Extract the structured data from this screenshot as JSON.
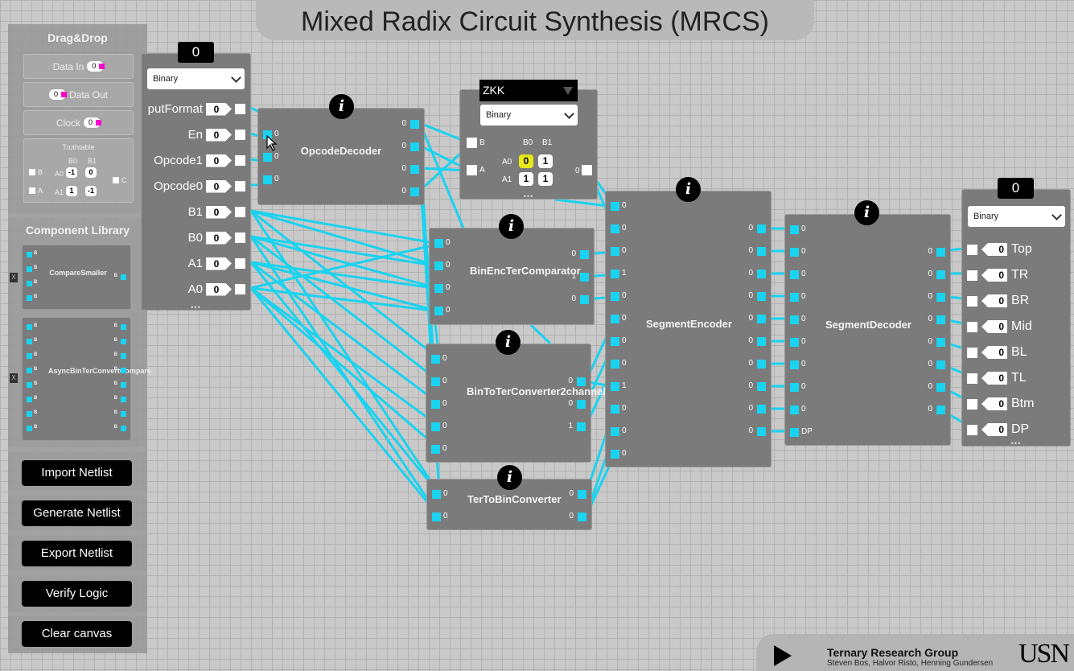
{
  "app": {
    "title": "Mixed Radix Circuit Synthesis (MRCS)"
  },
  "sidebar": {
    "drag_title": "Drag&Drop",
    "data_in": {
      "label": "Data In",
      "value": "0"
    },
    "data_out": {
      "label": "Data Out",
      "value": "0"
    },
    "clock": {
      "label": "Clock",
      "value": "0"
    },
    "truthtable": {
      "label": "Truthtable",
      "in_b": "B",
      "in_a": "A",
      "out_c": "C",
      "col0": "B0",
      "col1": "B1",
      "row0": "A0",
      "row1": "A1",
      "cells": [
        "-1",
        "0",
        "1",
        "-1"
      ]
    },
    "library_title": "Component Library",
    "lib1": {
      "name": "CompareSmaller",
      "pin": "B"
    },
    "lib2": {
      "name": "AsyncBinTerConvertCompare",
      "pin": "B"
    },
    "trash_icon": "X",
    "buttons": [
      "Import Netlist",
      "Generate Netlist",
      "Export Netlist",
      "Verify Logic",
      "Clear canvas"
    ]
  },
  "input_block": {
    "counter": "0",
    "format": "Binary",
    "rows": [
      {
        "label": "putFormat",
        "value": "0"
      },
      {
        "label": "En",
        "value": "0"
      },
      {
        "label": "Opcode1",
        "value": "0"
      },
      {
        "label": "Opcode0",
        "value": "0"
      },
      {
        "label": "B1",
        "value": "0"
      },
      {
        "label": "B0",
        "value": "0"
      },
      {
        "label": "A1",
        "value": "0"
      },
      {
        "label": "A0",
        "value": "0"
      }
    ],
    "dots": "•••"
  },
  "components": {
    "opcode": {
      "name": "OpcodeDecoder",
      "info": "i",
      "in": [
        "0",
        "0",
        "0"
      ],
      "out": [
        "0",
        "0",
        "0",
        "0"
      ]
    },
    "zkk": {
      "title": "ZKK",
      "format": "Binary",
      "in_b": "B",
      "in_a": "A",
      "col0": "B0",
      "col1": "B1",
      "row0": "A0",
      "row1": "A1",
      "cells": [
        "0",
        "1",
        "1",
        "1"
      ],
      "out": "0",
      "dots": "•••"
    },
    "binenc": {
      "name": "BinEncTerComparator",
      "info": "i",
      "in": [
        "0",
        "0",
        "0",
        "0"
      ],
      "out": [
        "0",
        "1",
        "0"
      ]
    },
    "bintoter": {
      "name": "BinToTerConverter2channel",
      "info": "i",
      "in": [
        "0",
        "0",
        "0",
        "0",
        "0"
      ],
      "out": [
        "0",
        "0",
        "1"
      ]
    },
    "tertobin": {
      "name": "TerToBinConverter",
      "info": "i",
      "in": [
        "0",
        "0"
      ],
      "out": [
        "0",
        "0"
      ]
    },
    "segenc": {
      "name": "SegmentEncoder",
      "info": "i",
      "in": [
        "0",
        "0",
        "0",
        "1",
        "0",
        "0",
        "0",
        "0",
        "1",
        "0",
        "0",
        "0"
      ],
      "out": [
        "0",
        "0",
        "0",
        "0",
        "0",
        "0",
        "0",
        "0",
        "0",
        "0"
      ]
    },
    "segdec": {
      "name": "SegmentDecoder",
      "info": "i",
      "in": [
        "0",
        "0",
        "0",
        "0",
        "0",
        "0",
        "0",
        "0",
        "0",
        "DP"
      ],
      "out": [
        "0",
        "0",
        "0",
        "0",
        "0",
        "0",
        "0",
        "0"
      ]
    }
  },
  "output_block": {
    "counter": "0",
    "format": "Binary",
    "rows": [
      {
        "label": "Top",
        "value": "0"
      },
      {
        "label": "TR",
        "value": "0"
      },
      {
        "label": "BR",
        "value": "0"
      },
      {
        "label": "Mid",
        "value": "0"
      },
      {
        "label": "BL",
        "value": "0"
      },
      {
        "label": "TL",
        "value": "0"
      },
      {
        "label": "Btm",
        "value": "0"
      },
      {
        "label": "DP",
        "value": "0"
      }
    ],
    "dots": "•••"
  },
  "footer": {
    "group": "Ternary Research Group",
    "authors": "Steven Bos, Halvor Risto, Henning Gundersen",
    "logo": "USN"
  },
  "colors": {
    "wire": "#19d3f0",
    "highlight": "#e8e81a"
  }
}
